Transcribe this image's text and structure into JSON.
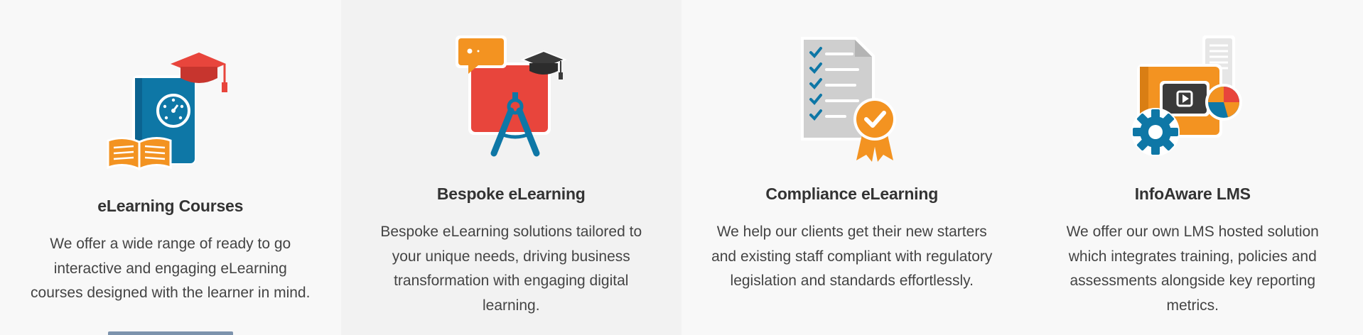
{
  "cards": [
    {
      "title": "eLearning Courses",
      "description": "We offer a wide range of ready to go interactive and engaging eLearning courses designed with the learner in mind.",
      "icon": "book-graduation-cap-icon"
    },
    {
      "title": "Bespoke eLearning",
      "description": "Bespoke eLearning solutions tailored to your unique needs, driving business transformation with engaging digital learning.",
      "icon": "board-compass-icon"
    },
    {
      "title": "Compliance eLearning",
      "description": "We help our clients get their new starters and existing staff compliant with regulatory legislation and standards effortlessly.",
      "icon": "checklist-certificate-icon"
    },
    {
      "title": "InfoAware LMS",
      "description": "We offer our own LMS hosted solution which integrates training, policies and assessments alongside key reporting metrics.",
      "icon": "lms-dashboard-icon"
    }
  ],
  "colors": {
    "blue": "#0e77a6",
    "orange": "#f39321",
    "red": "#e8453c",
    "dark": "#3a3a3a",
    "grey": "#cfcfcf",
    "button": "#7d93ad"
  }
}
